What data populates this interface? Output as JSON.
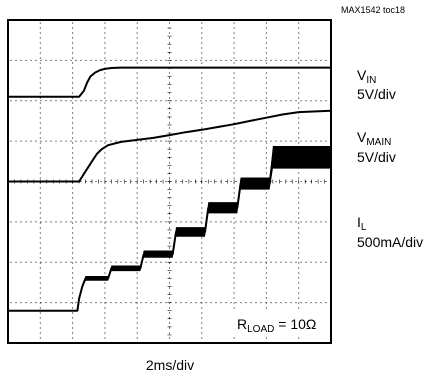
{
  "header": {
    "figure_id": "MAX1542 toc18"
  },
  "channels": [
    {
      "name": "V",
      "sub": "IN",
      "scale": "5V/div"
    },
    {
      "name": "V",
      "sub": "MAIN",
      "scale": "5V/div"
    },
    {
      "name": "I",
      "sub": "L",
      "scale": "500mA/div"
    }
  ],
  "annotation": {
    "prefix": "R",
    "sub": "LOAD",
    "suffix": " = 10Ω"
  },
  "xaxis": {
    "label": "2ms/div"
  },
  "colors": {
    "trace": "#000000",
    "grid": "#000000",
    "background": "#ffffff"
  },
  "chart_data": {
    "type": "line",
    "title": "",
    "xlabel": "2ms/div",
    "ylabel": "",
    "grid": true,
    "x_divisions": 10,
    "y_divisions": 8,
    "x_unit": "div",
    "series": [
      {
        "name": "VIN",
        "scale": "5V/div",
        "x": [
          0,
          2.2,
          2.35,
          2.45,
          2.55,
          2.7,
          2.85,
          3.0,
          3.2,
          3.5,
          4.0,
          5.0,
          10.0
        ],
        "y": [
          6.1,
          6.1,
          6.25,
          6.45,
          6.6,
          6.7,
          6.76,
          6.79,
          6.81,
          6.82,
          6.82,
          6.82,
          6.82
        ]
      },
      {
        "name": "VMAIN",
        "scale": "5V/div",
        "x": [
          0,
          2.2,
          2.4,
          2.6,
          2.75,
          2.9,
          3.1,
          3.5,
          4.5,
          5.0,
          5.5,
          6.0,
          6.5,
          7.0,
          7.5,
          8.0,
          8.5,
          9.0,
          10.0
        ],
        "y": [
          4.0,
          4.0,
          4.25,
          4.5,
          4.68,
          4.8,
          4.9,
          4.98,
          5.08,
          5.15,
          5.22,
          5.28,
          5.35,
          5.42,
          5.5,
          5.58,
          5.66,
          5.72,
          5.75
        ]
      },
      {
        "name": "IL",
        "scale": "500mA/div",
        "x": [
          0,
          2.15,
          2.2,
          2.3,
          2.4,
          2.5,
          3.1,
          3.2,
          4.1,
          4.2,
          5.1,
          5.2,
          6.1,
          6.2,
          7.1,
          7.2,
          8.1,
          8.2,
          9.0,
          10.0
        ],
        "y": [
          0.8,
          0.8,
          1.1,
          1.4,
          1.6,
          1.6,
          1.6,
          1.85,
          1.85,
          2.2,
          2.2,
          2.75,
          2.75,
          3.35,
          3.35,
          3.95,
          3.95,
          4.6,
          4.6,
          4.6
        ],
        "ripple": [
          0,
          0,
          0.03,
          0.05,
          0.06,
          0.06,
          0.06,
          0.07,
          0.07,
          0.09,
          0.09,
          0.12,
          0.12,
          0.14,
          0.14,
          0.15,
          0.15,
          0.28,
          0.28,
          0.28
        ]
      }
    ]
  }
}
